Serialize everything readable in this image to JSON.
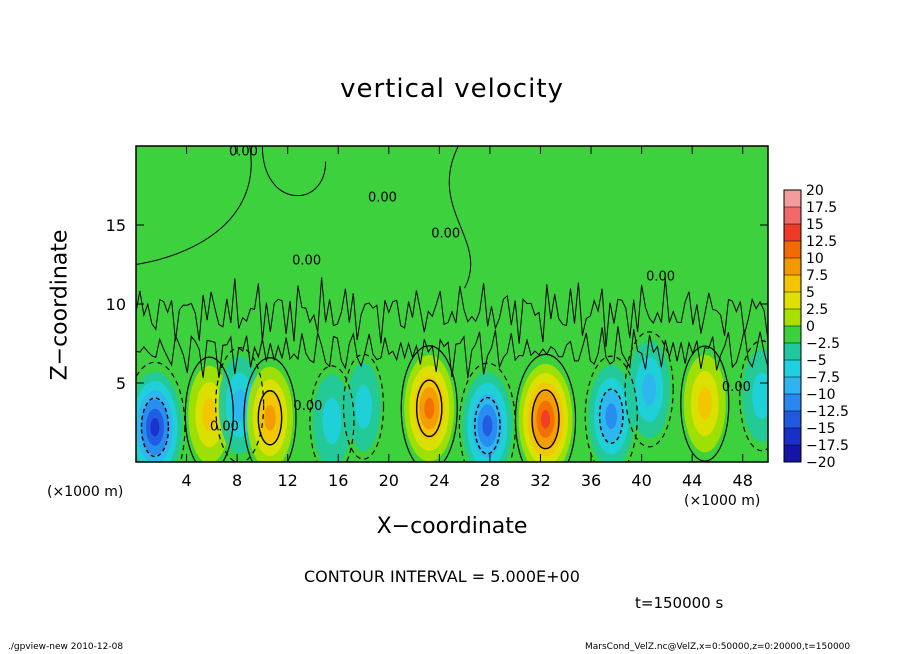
{
  "chart_data": {
    "type": "heatmap",
    "title": "vertical velocity",
    "xlabel": "X−coordinate",
    "ylabel": "Z−coordinate",
    "x_unit_left": "(×1000 m)",
    "x_unit_right": "(×1000 m)",
    "xlim": [
      0,
      50
    ],
    "ylim": [
      0,
      20
    ],
    "x_ticks": [
      4,
      8,
      12,
      16,
      20,
      24,
      28,
      32,
      36,
      40,
      44,
      48
    ],
    "x_tick_labels": [
      "4",
      "8",
      "12",
      "16",
      "20",
      "24",
      "28",
      "32",
      "36",
      "40",
      "44",
      "48"
    ],
    "y_ticks": [
      5,
      10,
      15
    ],
    "y_tick_labels": [
      "5",
      "10",
      "15"
    ],
    "colorbar": {
      "levels": [
        20,
        17.5,
        15,
        12.5,
        10,
        7.5,
        5,
        2.5,
        0,
        -2.5,
        -5,
        -7.5,
        -10,
        -12.5,
        -15,
        -17.5,
        -20
      ],
      "labels": [
        "20",
        "17.5",
        "15",
        "12.5",
        "10",
        "7.5",
        "5",
        "2.5",
        "0",
        "−2.5",
        "−5",
        "−7.5",
        "−10",
        "−12.5",
        "−15",
        "−17.5",
        "−20"
      ],
      "colors": [
        "#f49c9c",
        "#f06a6a",
        "#ee3a28",
        "#f26a00",
        "#f49800",
        "#f4c400",
        "#e0e000",
        "#a8e000",
        "#3cd03c",
        "#20c8a0",
        "#20d0e0",
        "#30b4f0",
        "#2888f0",
        "#2058e0",
        "#1830c8",
        "#1414a8",
        "#7010b0"
      ]
    },
    "background_color": "#3dd13d",
    "cells": [
      {
        "x": 1.5,
        "z": 2.2,
        "w": -15
      },
      {
        "x": 5.8,
        "z": 3.0,
        "w": 7.5
      },
      {
        "x": 8.2,
        "z": 3.6,
        "w": -7.5
      },
      {
        "x": 10.6,
        "z": 2.8,
        "w": 10
      },
      {
        "x": 15.5,
        "z": 2.6,
        "w": -5
      },
      {
        "x": 18.0,
        "z": 3.5,
        "w": -2.5
      },
      {
        "x": 23.2,
        "z": 3.4,
        "w": 12.5
      },
      {
        "x": 27.8,
        "z": 2.3,
        "w": -12.5
      },
      {
        "x": 32.4,
        "z": 2.7,
        "w": 15
      },
      {
        "x": 37.6,
        "z": 2.9,
        "w": -10
      },
      {
        "x": 40.6,
        "z": 4.6,
        "w": -7.5
      },
      {
        "x": 45.0,
        "z": 3.7,
        "w": 7.5
      },
      {
        "x": 49.5,
        "z": 4.2,
        "w": -5
      }
    ],
    "contour_labels": [
      "0.00",
      "0.00",
      "0.00",
      "0.00",
      "0.00",
      "0.00",
      "0.00",
      "0.00"
    ]
  },
  "contour_interval": "CONTOUR INTERVAL = 5.000E+00",
  "time_label": "t=150000 s",
  "footer": {
    "left": "./gpview-new  2010-12-08",
    "right": "MarsCond_VelZ.nc@VelZ,x=0:50000,z=0:20000,t=150000"
  }
}
